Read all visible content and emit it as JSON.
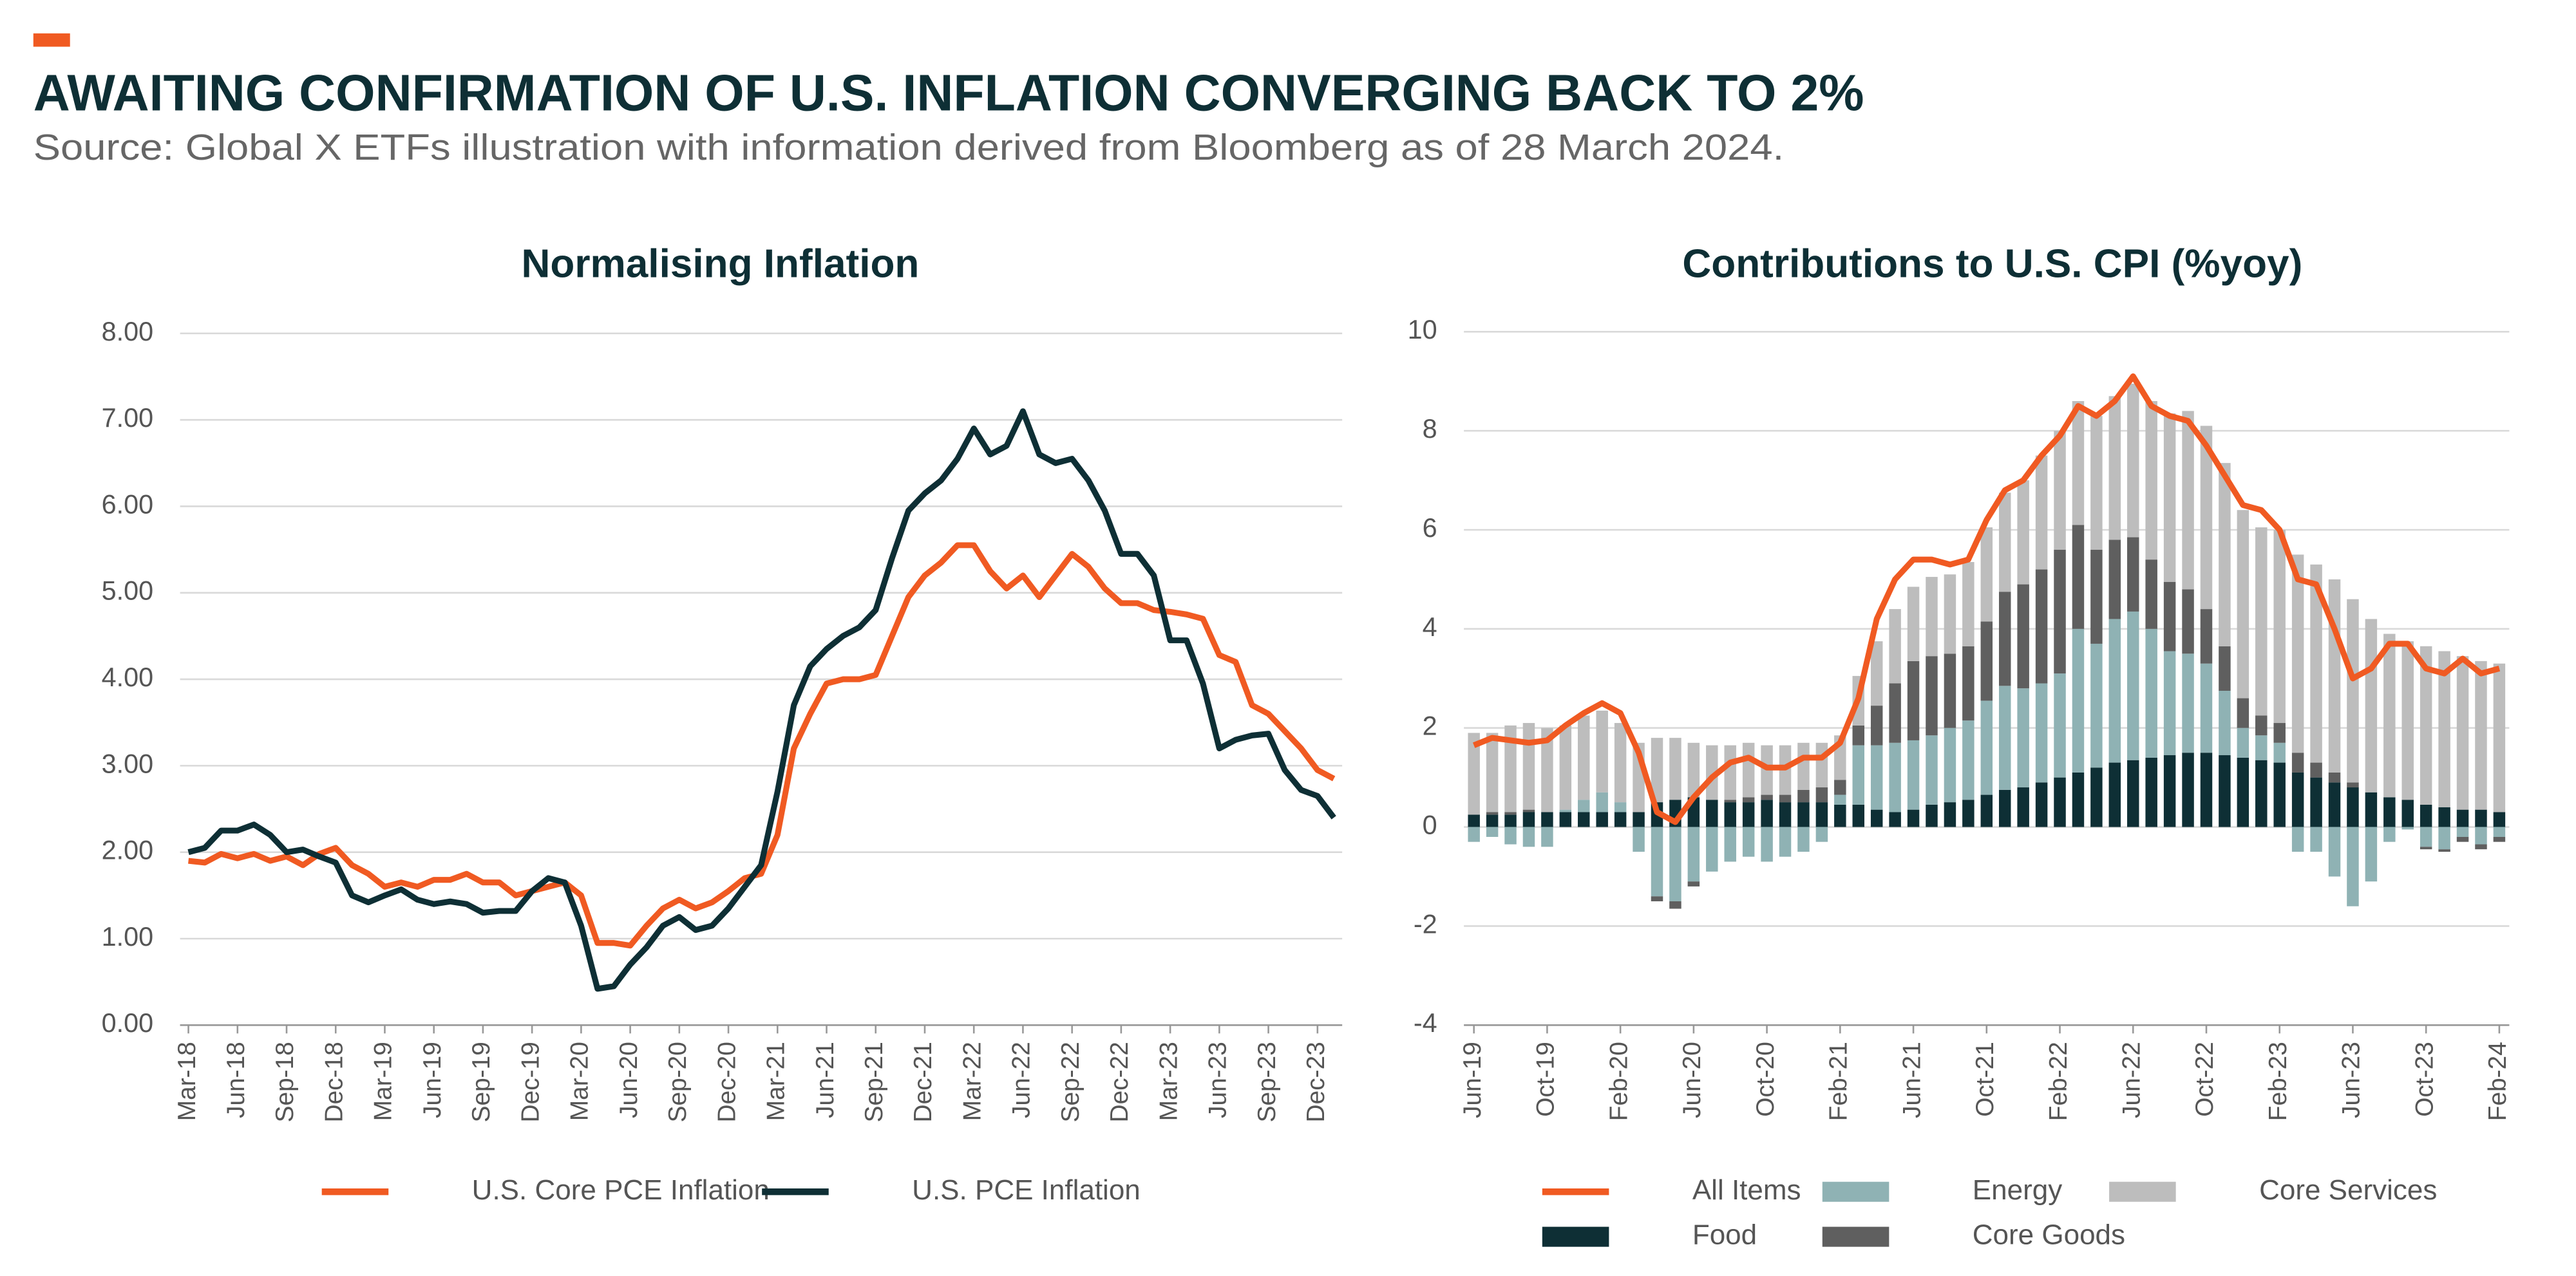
{
  "title": "AWAITING CONFIRMATION OF U.S. INFLATION CONVERGING BACK TO 2%",
  "subtitle": "Source: Global X ETFs illustration with information derived from Bloomberg as of 28 March 2024.",
  "chart_data": [
    {
      "type": "line",
      "title": "Normalising Inflation",
      "categories": [
        "Mar-18",
        null,
        null,
        "Jun-18",
        null,
        null,
        "Sep-18",
        null,
        null,
        "Dec-18",
        null,
        null,
        "Mar-19",
        null,
        null,
        "Jun-19",
        null,
        null,
        "Sep-19",
        null,
        null,
        "Dec-19",
        null,
        null,
        "Mar-20",
        null,
        null,
        "Jun-20",
        null,
        null,
        "Sep-20",
        null,
        null,
        "Dec-20",
        null,
        null,
        "Mar-21",
        null,
        null,
        "Jun-21",
        null,
        null,
        "Sep-21",
        null,
        null,
        "Dec-21",
        null,
        null,
        "Mar-22",
        null,
        null,
        "Jun-22",
        null,
        null,
        "Sep-22",
        null,
        null,
        "Dec-22",
        null,
        null,
        "Mar-23",
        null,
        null,
        "Jun-23",
        null,
        null,
        "Sep-23",
        null,
        null,
        "Dec-23",
        null
      ],
      "series": [
        {
          "name": "U.S. Core PCE Inflation",
          "color": "#f05a22",
          "values": [
            1.9,
            1.88,
            1.98,
            1.93,
            1.98,
            1.9,
            1.95,
            1.85,
            1.98,
            2.05,
            1.85,
            1.75,
            1.6,
            1.65,
            1.6,
            1.68,
            1.68,
            1.75,
            1.65,
            1.65,
            1.5,
            1.55,
            1.6,
            1.65,
            1.5,
            0.95,
            0.95,
            0.92,
            1.15,
            1.35,
            1.45,
            1.35,
            1.42,
            1.55,
            1.7,
            1.75,
            2.2,
            3.2,
            3.6,
            3.95,
            4.0,
            4.0,
            4.05,
            4.5,
            4.95,
            5.2,
            5.35,
            5.55,
            5.55,
            5.25,
            5.05,
            5.2,
            4.95,
            5.2,
            5.45,
            5.3,
            5.05,
            4.88,
            4.88,
            4.8,
            4.78,
            4.75,
            4.7,
            4.28,
            4.2,
            3.7,
            3.6,
            3.4,
            3.2,
            2.95,
            2.85
          ]
        },
        {
          "name": "U.S. PCE Inflation",
          "color": "#0e2f35",
          "values": [
            2.0,
            2.05,
            2.25,
            2.25,
            2.32,
            2.2,
            2.0,
            2.03,
            1.95,
            1.88,
            1.5,
            1.42,
            1.5,
            1.57,
            1.45,
            1.4,
            1.43,
            1.4,
            1.3,
            1.32,
            1.32,
            1.55,
            1.7,
            1.65,
            1.15,
            0.42,
            0.45,
            0.7,
            0.9,
            1.15,
            1.25,
            1.1,
            1.15,
            1.35,
            1.6,
            1.85,
            2.7,
            3.7,
            4.15,
            4.35,
            4.5,
            4.6,
            4.8,
            5.4,
            5.95,
            6.15,
            6.3,
            6.55,
            6.9,
            6.6,
            6.7,
            7.1,
            6.6,
            6.5,
            6.55,
            6.3,
            5.95,
            5.45,
            5.45,
            5.2,
            4.45,
            4.45,
            3.95,
            3.2,
            3.3,
            3.35,
            3.37,
            2.95,
            2.72,
            2.65,
            2.4
          ]
        }
      ],
      "ylim": [
        0,
        8
      ],
      "yticks": [
        {
          "value": 0,
          "label": "0.00"
        },
        {
          "value": 1,
          "label": "1.00"
        },
        {
          "value": 2,
          "label": "2.00"
        },
        {
          "value": 3,
          "label": "3.00"
        },
        {
          "value": 4,
          "label": "4.00"
        },
        {
          "value": 5,
          "label": "5.00"
        },
        {
          "value": 6,
          "label": "6.00"
        },
        {
          "value": 7,
          "label": "7.00"
        },
        {
          "value": 8,
          "label": "8.00"
        }
      ],
      "grid": true
    },
    {
      "type": "bar",
      "stacked": true,
      "title": "Contributions to U.S. CPI (%yoy)",
      "categories": [
        "Jun-19",
        null,
        null,
        null,
        "Oct-19",
        null,
        null,
        null,
        "Feb-20",
        null,
        null,
        null,
        "Jun-20",
        null,
        null,
        null,
        "Oct-20",
        null,
        null,
        null,
        "Feb-21",
        null,
        null,
        null,
        "Jun-21",
        null,
        null,
        null,
        "Oct-21",
        null,
        null,
        null,
        "Feb-22",
        null,
        null,
        null,
        "Jun-22",
        null,
        null,
        null,
        "Oct-22",
        null,
        null,
        null,
        "Feb-23",
        null,
        null,
        null,
        "Jun-23",
        null,
        null,
        null,
        "Oct-23",
        null,
        null,
        null,
        "Feb-24"
      ],
      "series": [
        {
          "name": "All Items",
          "type": "line",
          "color": "#f05a22",
          "values": [
            1.65,
            1.8,
            1.75,
            1.7,
            1.75,
            2.05,
            2.3,
            2.5,
            2.3,
            1.5,
            0.3,
            0.1,
            0.6,
            1.0,
            1.3,
            1.4,
            1.2,
            1.2,
            1.4,
            1.4,
            1.7,
            2.6,
            4.2,
            5.0,
            5.4,
            5.4,
            5.3,
            5.4,
            6.2,
            6.8,
            7.0,
            7.5,
            7.9,
            8.5,
            8.3,
            8.6,
            9.1,
            8.5,
            8.3,
            8.2,
            7.7,
            7.1,
            6.5,
            6.4,
            6.0,
            5.0,
            4.9,
            4.0,
            3.0,
            3.2,
            3.7,
            3.7,
            3.2,
            3.1,
            3.4,
            3.1,
            3.2
          ]
        },
        {
          "name": "Food",
          "color": "#0e2f35",
          "values": [
            0.25,
            0.25,
            0.25,
            0.3,
            0.3,
            0.3,
            0.3,
            0.3,
            0.3,
            0.3,
            0.5,
            0.55,
            0.6,
            0.55,
            0.5,
            0.5,
            0.55,
            0.5,
            0.5,
            0.5,
            0.45,
            0.45,
            0.35,
            0.3,
            0.35,
            0.45,
            0.5,
            0.55,
            0.65,
            0.75,
            0.8,
            0.9,
            1.0,
            1.1,
            1.2,
            1.3,
            1.35,
            1.4,
            1.45,
            1.5,
            1.5,
            1.45,
            1.4,
            1.35,
            1.3,
            1.1,
            1.0,
            0.9,
            0.8,
            0.7,
            0.6,
            0.55,
            0.45,
            0.4,
            0.35,
            0.35,
            0.3
          ]
        },
        {
          "name": "Energy",
          "color": "#8fb2b4",
          "values": [
            -0.3,
            -0.2,
            -0.35,
            -0.4,
            -0.4,
            0.05,
            0.25,
            0.4,
            0.2,
            -0.5,
            -1.4,
            -1.5,
            -1.1,
            -0.9,
            -0.7,
            -0.6,
            -0.7,
            -0.6,
            -0.5,
            -0.3,
            0.2,
            1.2,
            1.3,
            1.4,
            1.4,
            1.4,
            1.5,
            1.6,
            1.9,
            2.1,
            2.0,
            2.0,
            2.1,
            2.9,
            2.5,
            2.9,
            3.0,
            2.6,
            2.1,
            2.0,
            1.8,
            1.3,
            0.6,
            0.5,
            0.4,
            -0.5,
            -0.5,
            -1.0,
            -1.6,
            -1.1,
            -0.3,
            -0.05,
            -0.4,
            -0.45,
            -0.2,
            -0.35,
            -0.2
          ]
        },
        {
          "name": "Core Goods",
          "color": "#5f5f5f",
          "values": [
            0,
            0.05,
            0.05,
            0.05,
            0,
            0,
            0,
            0,
            0,
            0,
            -0.1,
            -0.15,
            -0.1,
            0,
            0.05,
            0.1,
            0.1,
            0.15,
            0.25,
            0.3,
            0.3,
            0.4,
            0.8,
            1.2,
            1.6,
            1.6,
            1.5,
            1.5,
            1.6,
            1.9,
            2.1,
            2.3,
            2.5,
            2.1,
            1.9,
            1.6,
            1.5,
            1.4,
            1.4,
            1.3,
            1.1,
            0.9,
            0.6,
            0.4,
            0.4,
            0.4,
            0.3,
            0.2,
            0.1,
            0,
            0,
            0,
            -0.05,
            -0.05,
            -0.1,
            -0.1,
            -0.1
          ]
        },
        {
          "name": "Core Services",
          "color": "#bdbdbd",
          "values": [
            1.65,
            1.6,
            1.75,
            1.75,
            1.7,
            1.7,
            1.7,
            1.65,
            1.6,
            1.4,
            1.3,
            1.25,
            1.1,
            1.1,
            1.1,
            1.1,
            1.0,
            1.0,
            0.95,
            0.9,
            0.9,
            1.0,
            1.3,
            1.5,
            1.5,
            1.6,
            1.6,
            1.7,
            1.9,
            2.0,
            2.1,
            2.3,
            2.4,
            2.5,
            2.7,
            2.9,
            3.1,
            3.2,
            3.4,
            3.6,
            3.7,
            3.7,
            3.8,
            3.8,
            3.9,
            4.0,
            4.0,
            3.9,
            3.7,
            3.5,
            3.3,
            3.2,
            3.2,
            3.15,
            3.1,
            3.0,
            3.0
          ]
        }
      ],
      "ylim": [
        -4,
        10
      ],
      "yticks": [
        -4,
        -2,
        0,
        2,
        4,
        6,
        8,
        10
      ],
      "grid": true
    }
  ]
}
